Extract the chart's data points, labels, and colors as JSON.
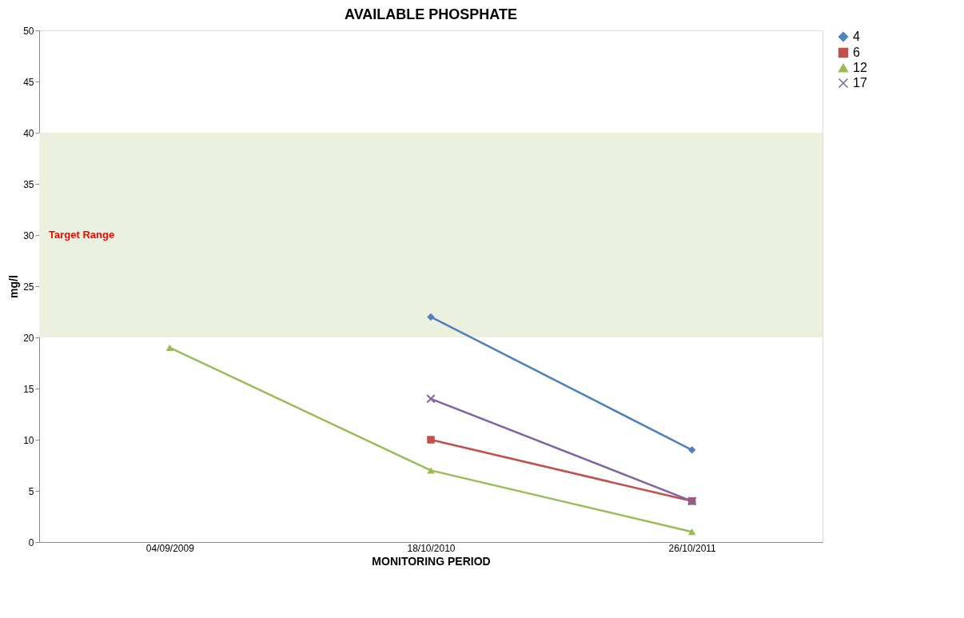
{
  "chart_data": {
    "type": "line",
    "title": "AVAILABLE PHOSPHATE",
    "xlabel": "MONITORING PERIOD",
    "ylabel": "mg/l",
    "categories": [
      "04/09/2009",
      "18/10/2010",
      "26/10/2011"
    ],
    "series": [
      {
        "name": "4",
        "color": "#4f81bd",
        "marker": "diamond",
        "values": [
          null,
          22,
          9
        ]
      },
      {
        "name": "6",
        "color": "#c0504d",
        "marker": "square",
        "values": [
          null,
          10,
          4
        ]
      },
      {
        "name": "12",
        "color": "#9bbb59",
        "marker": "triangle",
        "values": [
          19,
          7,
          1
        ]
      },
      {
        "name": "17",
        "color": "#8064a2",
        "marker": "cross",
        "values": [
          null,
          14,
          4
        ]
      }
    ],
    "bands": [
      {
        "axis": "y",
        "from": 20,
        "to": 40,
        "label": "Target Range",
        "color": "#ebf1de"
      }
    ],
    "ylim": [
      0,
      50
    ],
    "yticks": [
      0,
      5,
      10,
      15,
      20,
      25,
      30,
      35,
      40,
      45,
      50
    ],
    "grid": false,
    "legend": "right",
    "line_style": "solid"
  }
}
